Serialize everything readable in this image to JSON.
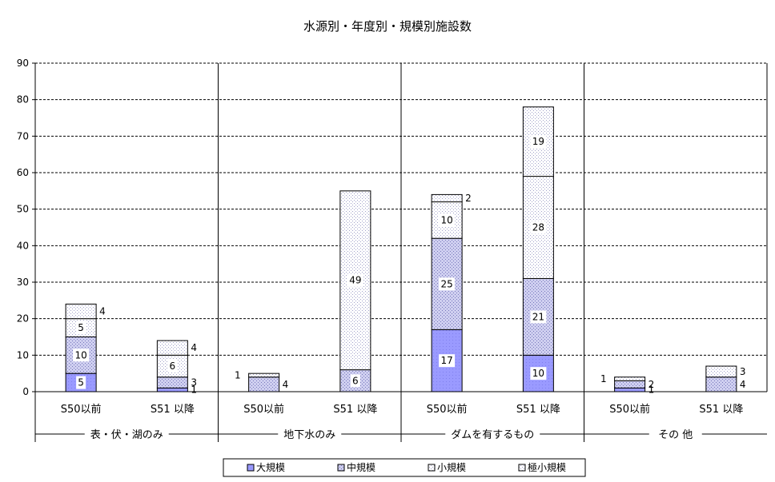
{
  "chart_data": {
    "type": "bar",
    "stacked": true,
    "title": "水源別・年度別・規模別施設数",
    "ylim": [
      0,
      90
    ],
    "yticks": [
      0,
      10,
      20,
      30,
      40,
      50,
      60,
      70,
      80,
      90
    ],
    "gridlines": "dashed-horizontal",
    "legend_position": "bottom",
    "categories": [
      "S50以前",
      "S51 以降",
      "S50以前",
      "S51 以降",
      "S50以前",
      "S51 以降",
      "S50以前",
      "S51 以降"
    ],
    "groups": [
      {
        "name": "表・伏・湖のみ",
        "indices": [
          0,
          1
        ]
      },
      {
        "name": "地下水のみ",
        "indices": [
          2,
          3
        ]
      },
      {
        "name": "ダムを有するもの",
        "indices": [
          4,
          5
        ]
      },
      {
        "name": "その 他",
        "indices": [
          6,
          7
        ]
      }
    ],
    "series": [
      {
        "name": "大規模",
        "values": [
          5,
          1,
          0,
          0,
          17,
          10,
          1,
          0
        ],
        "color": "#9999ff"
      },
      {
        "name": "中規模",
        "values": [
          10,
          3,
          4,
          6,
          25,
          21,
          2,
          4
        ],
        "color": "#c8c8ee"
      },
      {
        "name": "小規模",
        "values": [
          5,
          6,
          0,
          49,
          10,
          28,
          0,
          3
        ],
        "color": "#eeeef6"
      },
      {
        "name": "極小規模",
        "values": [
          4,
          4,
          1,
          0,
          2,
          19,
          1,
          0
        ],
        "color": "#ffffff"
      }
    ],
    "data_labels": [
      [
        "5",
        "10",
        "5",
        "4"
      ],
      [
        "1",
        "3",
        "6",
        "4"
      ],
      [
        "",
        "4",
        "",
        "1"
      ],
      [
        "",
        "6",
        "49",
        ""
      ],
      [
        "17",
        "25",
        "10",
        "2"
      ],
      [
        "10",
        "21",
        "28",
        "19"
      ],
      [
        "1",
        "2",
        "",
        "1"
      ],
      [
        "",
        "4",
        "3",
        ""
      ]
    ]
  }
}
